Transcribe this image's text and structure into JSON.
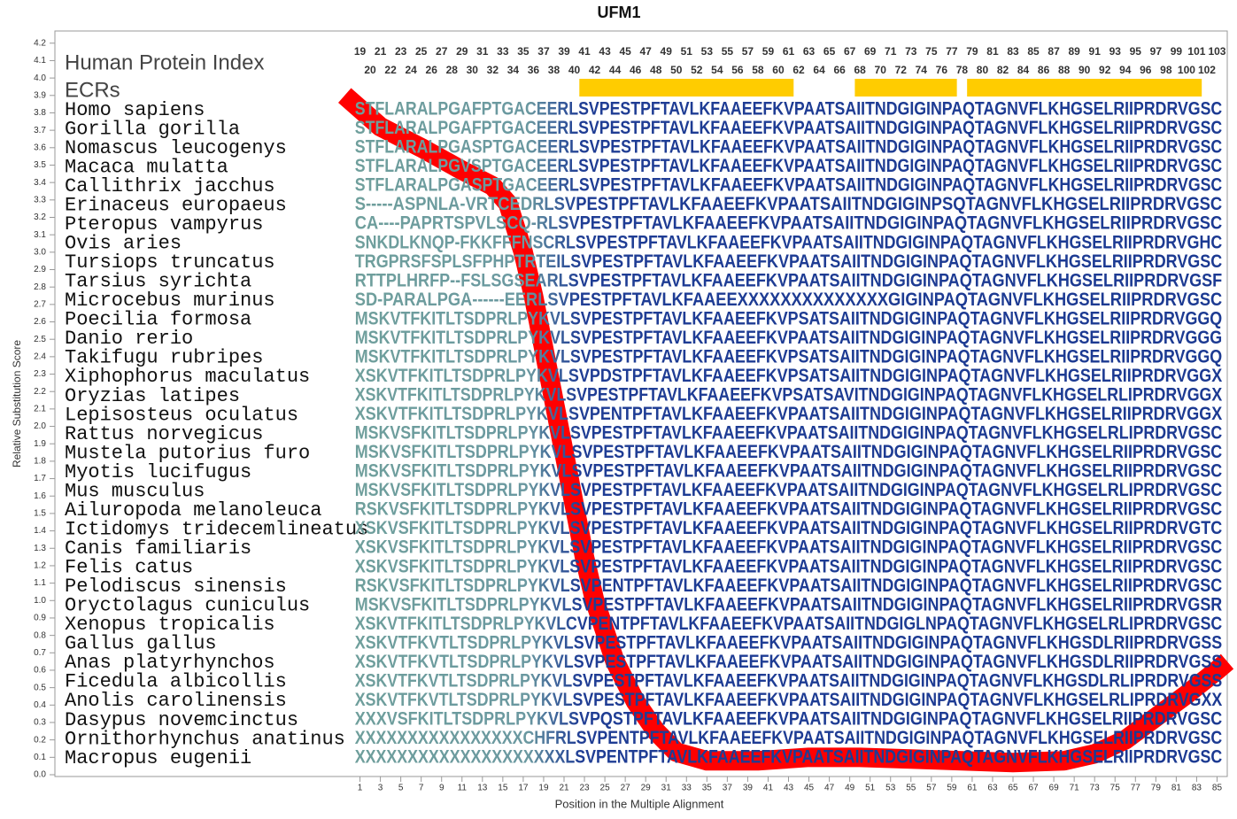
{
  "chart_data": {
    "type": "line",
    "title": "UFM1",
    "x_label": "Position in the Multiple Alignment",
    "y_label": "Relative Substitution Score",
    "xlim": [
      -28.9,
      86
    ],
    "ylim": [
      0,
      4.27
    ],
    "xticks": [
      1,
      3,
      5,
      7,
      9,
      11,
      13,
      15,
      17,
      19,
      21,
      23,
      25,
      27,
      29,
      31,
      33,
      35,
      37,
      39,
      41,
      43,
      45,
      47,
      49,
      51,
      53,
      55,
      57,
      59,
      61,
      63,
      65,
      67,
      69,
      71,
      73,
      75,
      77,
      79,
      81,
      83,
      85
    ],
    "yticks": [
      {
        "value": 0,
        "label": "0.0"
      },
      0.1,
      0.2,
      0.3,
      0.4,
      0.5,
      0.6,
      0.7,
      0.8,
      0.9,
      {
        "value": 1,
        "label": "1.0"
      },
      1.1,
      1.2,
      1.3,
      1.4,
      1.5,
      1.6,
      1.7,
      1.8,
      1.9,
      {
        "value": 2,
        "label": "2.0"
      },
      2.1,
      2.2,
      2.3,
      2.4,
      2.5,
      2.6,
      2.7,
      2.8,
      2.9,
      {
        "value": 3,
        "label": "3.0"
      },
      3.1,
      3.2,
      3.3,
      3.4,
      3.5,
      3.6,
      3.7,
      3.8,
      3.9,
      {
        "value": 4,
        "label": "4.0"
      },
      4.1,
      4.2
    ],
    "x": [
      -0.5,
      3,
      7,
      11,
      14,
      15.5,
      17,
      18,
      19,
      20,
      21,
      22,
      23,
      24,
      26,
      28,
      30,
      32,
      35,
      40,
      45,
      50,
      55,
      60,
      65,
      70,
      73,
      76,
      79,
      82,
      85,
      86
    ],
    "series": [
      {
        "color": "#ff0000",
        "values": [
          3.9,
          3.72,
          3.6,
          3.47,
          3.38,
          3.28,
          3.0,
          2.75,
          2.45,
          2.15,
          1.85,
          1.55,
          1.25,
          1.0,
          0.65,
          0.42,
          0.25,
          0.13,
          0.08,
          0.08,
          0.1,
          0.1,
          0.09,
          0.08,
          0.07,
          0.08,
          0.12,
          0.2,
          0.33,
          0.46,
          0.6,
          0.65
        ]
      }
    ],
    "protein_index_label": "Human Protein Index",
    "protein_index": [
      19,
      20,
      21,
      22,
      23,
      24,
      25,
      26,
      27,
      28,
      29,
      30,
      31,
      32,
      33,
      34,
      35,
      36,
      37,
      38,
      39,
      40,
      41,
      42,
      43,
      44,
      45,
      46,
      47,
      48,
      49,
      50,
      51,
      52,
      53,
      54,
      55,
      56,
      57,
      58,
      59,
      60,
      61,
      62,
      63,
      64,
      65,
      66,
      67,
      68,
      69,
      70,
      71,
      72,
      73,
      74,
      75,
      76,
      77,
      78,
      79,
      80,
      81,
      82,
      83,
      84,
      85,
      86,
      87,
      88,
      89,
      90,
      91,
      92,
      93,
      94,
      95,
      96,
      97,
      98,
      99,
      100,
      101,
      102,
      103
    ],
    "ecr_label": "ECRs",
    "ecr_color": "#ffcc00",
    "ecrs": [
      {
        "start": 41,
        "end": 61
      },
      {
        "start": 68,
        "end": 77
      },
      {
        "start": 79,
        "end": 101
      }
    ],
    "alignment": [
      {
        "species": "Homo sapiens",
        "sequence": "STFLARALPGAFPTGACEERLSVPESTPFTAVLKFAAEEFKVPAATSAIITNDGIGINPAQTAGNVFLKHGSELRIIPRDRVGSC"
      },
      {
        "species": "Gorilla gorilla",
        "sequence": "STFLARALPGAFPTGACEERLSVPESTPFTAVLKFAAEEFKVPAATSAIITNDGIGINPAQTAGNVFLKHGSELRIIPRDRVGSC"
      },
      {
        "species": "Nomascus leucogenys",
        "sequence": "STFLARALPGASPTGACEERLSVPESTPFTAVLKFAAEEFKVPAATSAIITNDGIGINPAQTAGNVFLKHGSELRIIPRDRVGSC"
      },
      {
        "species": "Macaca mulatta",
        "sequence": "STFLARALPGVSPTGACEERLSVPESTPFTAVLKFAAEEFKVPAATSAIITNDGIGINPAQTAGNVFLKHGSELRIIPRDRVGSC"
      },
      {
        "species": "Callithrix jacchus",
        "sequence": "STFLARALPGASPTGACEERLSVPESTPFTAVLKFAAEEFKVPAATSAIITNDGIGINPAQTAGNVFLKHGSELRIIPRDRVGSC"
      },
      {
        "species": "Erinaceus europaeus",
        "sequence": "S-----ASPNLA-VRTCEDRLSVPESTPFTAVLKFAAEEFKVPAATSAIITNDGIGINPSQTAGNVFLKHGSELRIIPRDRVGSC"
      },
      {
        "species": "Pteropus vampyrus",
        "sequence": "CA----PAPRTSPVLSCQ-RLSVPESTPFTAVLKFAAEEFKVPAATSAIITNDGIGINPAQTAGNVFLKHGSELRIIPRDRVGSC"
      },
      {
        "species": "Ovis aries",
        "sequence": "SNKDLKNQP-FKKFFFNSCRLSVPESTPFTAVLKFAAEEFKVPAATSAIITNDGIGINPAQTAGNVFLKHGSELRIIPRDRVGHC"
      },
      {
        "species": "Tursiops truncatus",
        "sequence": "TRGPRSFSPLSFPHPTRTEILSVPESTPFTAVLKFAAEEFKVPAATSAIITNDGIGINPAQTAGNVFLKHGSELRIIPRDRVGSC"
      },
      {
        "species": "Tarsius syrichta",
        "sequence": "RTTPLHRFP--FSLSGSEARLSVPESTPFTAVLKFAAEEFKVPAATSAIITNDGIGINPAQTAGNVFLKHGSELRIIPRDRVGSF"
      },
      {
        "species": "Microcebus murinus",
        "sequence": "SD-PARALPGA------EERLSVPESTPFTAVLKFAAEEXXXXXXXXXXXXXXGIGINPAQTAGNVFLKHGSELRIIPRDRVGSC"
      },
      {
        "species": "Poecilia formosa",
        "sequence": "MSKVTFKITLTSDPRLPYKVLSVPESTPFTAVLKFAAEEFKVPSATSAIITNDGIGINPAQTAGNVFLKHGSELRIIPRDRVGGQ"
      },
      {
        "species": "Danio rerio",
        "sequence": "MSKVTFKITLTSDPRLPYKVLSVPESTPFTAVLKFAAEEFKVPAATSAIITNDGIGINPAQTAGNVFLKHGSELRIIPRDRVGGG"
      },
      {
        "species": "Takifugu rubripes",
        "sequence": "MSKVTFKITLTSDPRLPYKVLSVPESTPFTAVLKFAAEEFKVPSATSAIITNDGIGINPAQTAGNVFLKHGSELRIIPRDRVGGQ"
      },
      {
        "species": "Xiphophorus maculatus",
        "sequence": "XSKVTFKITLTSDPRLPYKVLSVPDSTPFTAVLKFAAEEFKVPSATSAIITNDGIGINPAQTAGNVFLKHGSELRIIPRDRVGGX"
      },
      {
        "species": "Oryzias latipes",
        "sequence": "XSKVTFKITLTSDPRLPYKVLSVPESTPFTAVLKFAAEEFKVPSATSAVITNDGIGINPAQTAGNVFLKHGSELRLIPRDRVGGX"
      },
      {
        "species": "Lepisosteus oculatus",
        "sequence": "XSKVTFKITLTSDPRLPYKVLSVPENTPFTAVLKFAAEEFKVPAATSAIITNDGIGINPAQTAGNVFLKHGSELRIIPRDRVGGX"
      },
      {
        "species": "Rattus norvegicus",
        "sequence": "MSKVSFKITLTSDPRLPYKVLSVPESTPFTAVLKFAAEEFKVPAATSAIITNDGIGINPAQTAGNVFLKHGSELRLIPRDRVGSC"
      },
      {
        "species": "Mustela putorius furo",
        "sequence": "MSKVSFKITLTSDPRLPYKVLSVPESTPFTAVLKFAAEEFKVPAATSAIITNDGIGINPAQTAGNVFLKHGSELRIIPRDRVGSC"
      },
      {
        "species": "Myotis lucifugus",
        "sequence": "MSKVSFKITLTSDPRLPYKVLSVPESTPFTAVLKFAAEEFKVPAATSAIITNDGIGINPAQTAGNVFLKHGSELRIIPRDRVGSC"
      },
      {
        "species": "Mus musculus",
        "sequence": "MSKVSFKITLTSDPRLPYKVLSVPESTPFTAVLKFAAEEFKVPAATSAIITNDGIGINPAQTAGNVFLKHGSELRLIPRDRVGSC"
      },
      {
        "species": "Ailuropoda melanoleuca",
        "sequence": "RSKVSFKITLTSDPRLPYKVLSVPESTPFTAVLKFAAEEFKVPAATSAIITNDGIGINPAQTAGNVFLKHGSELRIIPRDRVGSC"
      },
      {
        "species": "Ictidomys tridecemlineatus",
        "sequence": "XSKVSFKITLTSDPRLPYKVLSVPESTPFTAVLKFAAEEFKVPAATSAIITNDGIGINPAQTAGNVFLKHGSELRIIPRDRVGTC"
      },
      {
        "species": "Canis familiaris",
        "sequence": "XSKVSFKITLTSDPRLPYKVLSVPESTPFTAVLKFAAEEFKVPAATSAIITNDGIGINPAQTAGNVFLKHGSELRIIPRDRVGSC"
      },
      {
        "species": "Felis catus",
        "sequence": "XSKVSFKITLTSDPRLPYKVLSVPESTPFTAVLKFAAEEFKVPAATSAIITNDGIGINPAQTAGNVFLKHGSELRIIPRDRVGSC"
      },
      {
        "species": "Pelodiscus sinensis",
        "sequence": "RSKVSFKITLTSDPRLPYKVLSVPENTPFTAVLKFAAEEFKVPAATSAIITNDGIGINPAQTAGNVFLKHGSELRIIPRDRVGSC"
      },
      {
        "species": "Oryctolagus cuniculus",
        "sequence": "MSKVSFKITLTSDPRLPYKVLSVPESTPFTAVLKFAAEEFKVPAATSAIITNDGIGINPAQTAGNVFLKHGSELRIIPRDRVGSR"
      },
      {
        "species": "Xenopus tropicalis",
        "sequence": "XSKVTFKITLTSDPRLPYKVLCVPENTPFTAVLKFAAEEFKVPAATSAIITNDGIGLNPAQTAGNVFLKHGSELRLIPRDRVGSC"
      },
      {
        "species": "Gallus gallus",
        "sequence": "XSKVTFKVTLTSDPRLPYKVLSVPESTPFTAVLKFAAEEFKVPAATSAIITNDGIGINPAQTAGNVFLKHGSDLRIIPRDRVGSS"
      },
      {
        "species": "Anas platyrhynchos",
        "sequence": "XSKVTFKVTLTSDPRLPYKVLSVPESTPFTAVLKFAAEEFKVPAATSAIITNDGIGINPAQTAGNVFLKHGSDLRIIPRDRVGSS"
      },
      {
        "species": "Ficedula albicollis",
        "sequence": "XSKVTFKVTLTSDPRLPYKVLSVPESTPFTAVLKFAAEEFKVPAATSAIITNDGIGINPAQTAGNVFLKHGSDLRLIPRDRVGSS"
      },
      {
        "species": "Anolis carolinensis",
        "sequence": "XSKVTFKVTLTSDPRLPYKVLSVPESTPFTAVLKFAAEEFKVPAATSAIITNDGIGINPAQTAGNVFLKHGSELRLIPRDRVGXX"
      },
      {
        "species": "Dasypus novemcinctus",
        "sequence": "XXXVSFKITLTSDPRLPYKVLSVPQSTPFTAVLKFAAEEFKVPAATSAIITNDGIGINPAQTAGNVFLKHGSELRIIPRDRVGSC"
      },
      {
        "species": "Ornithorhynchus anatinus",
        "sequence": "XXXXXXXXXXXXXXXXCHFRLSVPENTPFTAVLKFAAEEFKVPAATSAIITNDGIGINPAQTAGNVFLKHGSELRIIPRDRVGSC"
      },
      {
        "species": "Macropus eugenii",
        "sequence": "XXXXXXXXXXXXXXXXXXXXLSVPENTPFTAVLKFAAEEFKVPAATSAIITNDGIGINPAQTAGNVFLKHGSELRIIPRDRVGSC"
      }
    ]
  }
}
